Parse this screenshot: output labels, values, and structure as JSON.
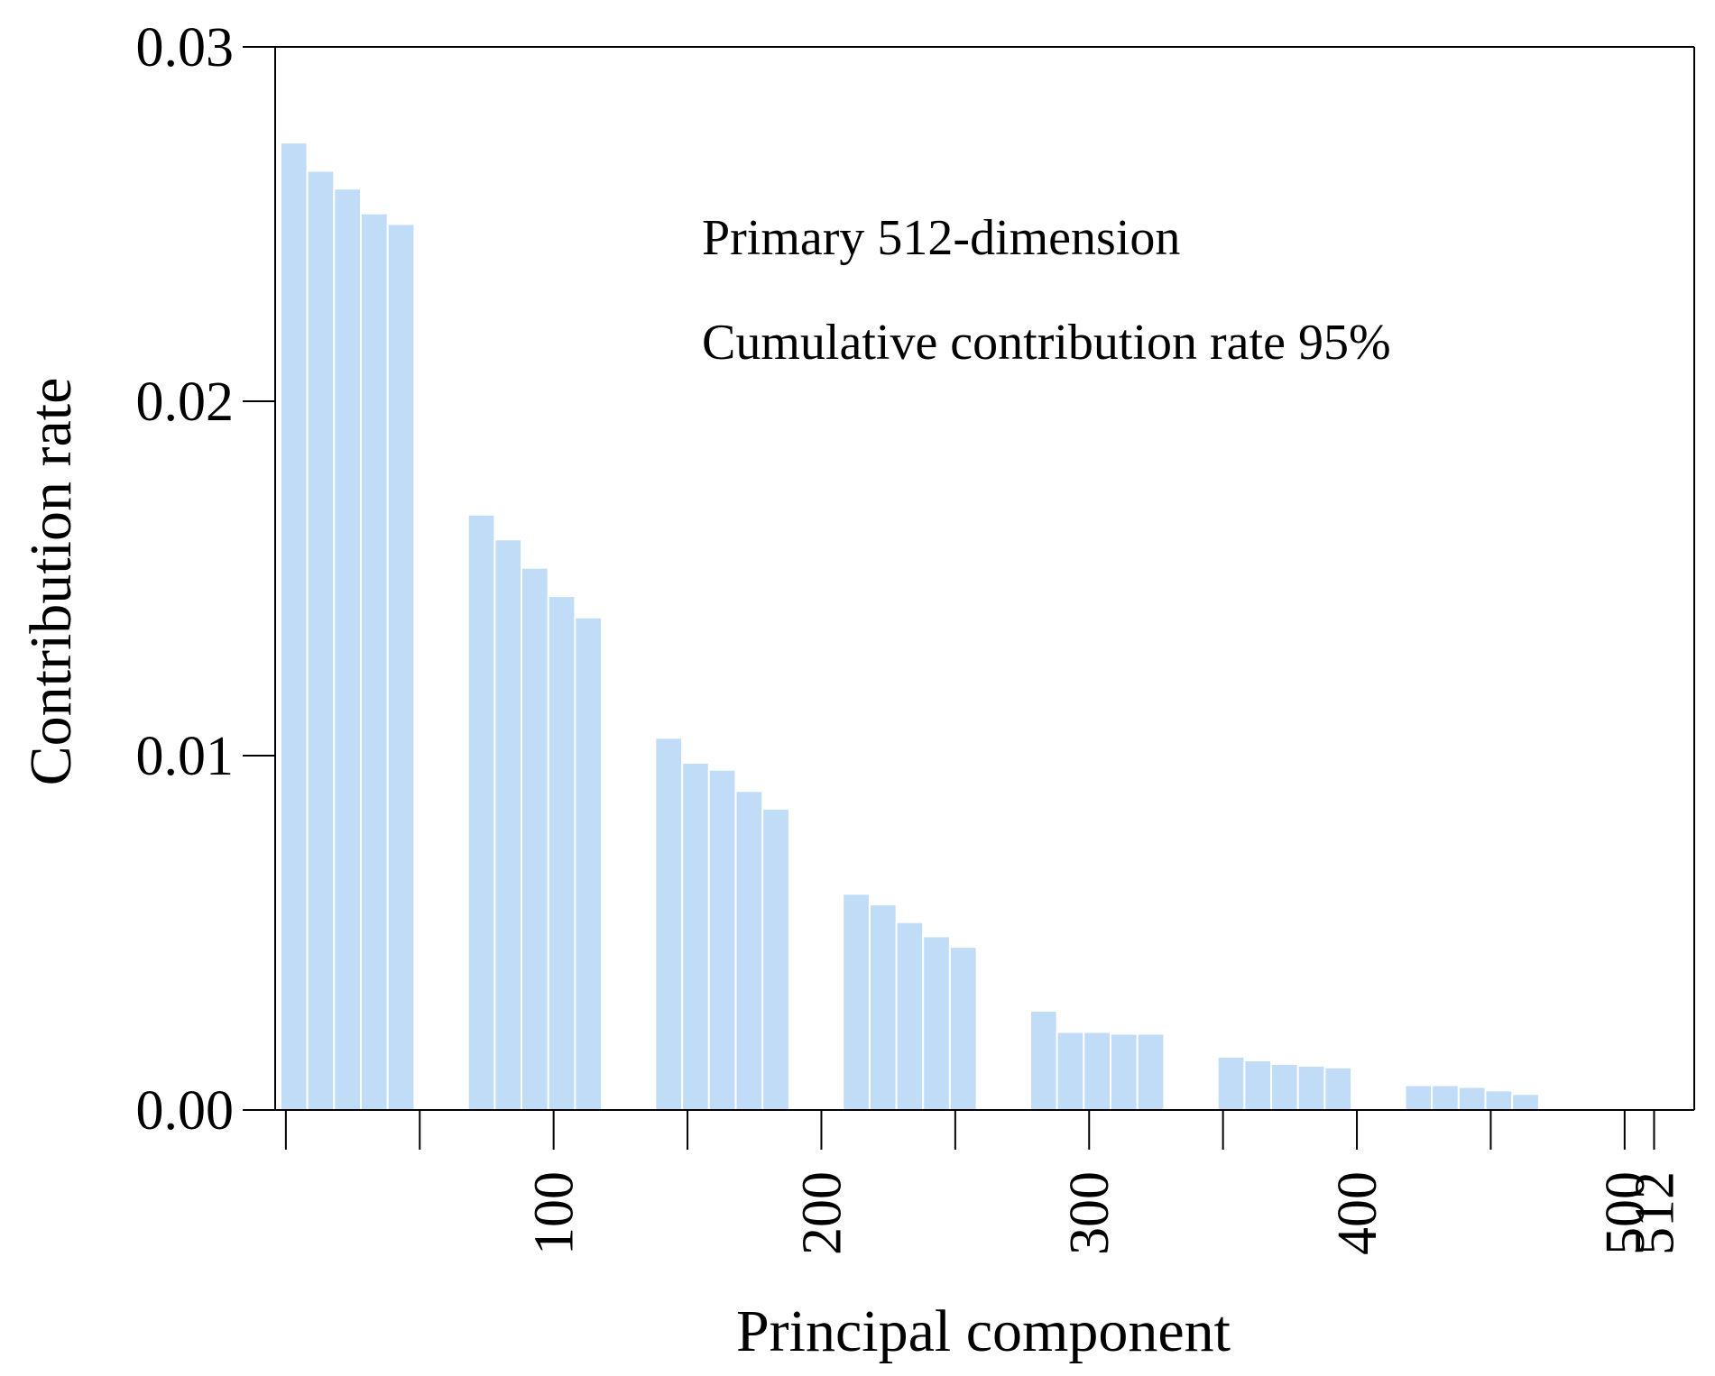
{
  "chart_data": {
    "type": "bar",
    "title": "",
    "xlabel": "Principal component",
    "ylabel": "Contribution rate",
    "ylim": [
      0,
      0.03
    ],
    "yticks": [
      0,
      0.01,
      0.02,
      0.03
    ],
    "ytick_labels": [
      "0.00",
      "0.01",
      "0.02",
      "0.03"
    ],
    "xlim": [
      -3,
      527
    ],
    "xticks": [
      1,
      51,
      101,
      151,
      201,
      251,
      301,
      351,
      401,
      451,
      501,
      512
    ],
    "xtick_labels": [
      "",
      "",
      "100",
      "",
      "200",
      "",
      "300",
      "",
      "400",
      "",
      "500",
      "512"
    ],
    "grid": false,
    "annotations": [
      "Primary 512-dimension",
      "Cumulative contribution rate 95%"
    ],
    "bar_width": 10,
    "colors": {
      "bar": "#c0dcf7",
      "bar_edge": "#ffffff",
      "axis": "#000000"
    },
    "bars": [
      {
        "x": 4,
        "value": 0.0273
      },
      {
        "x": 14,
        "value": 0.0265
      },
      {
        "x": 24,
        "value": 0.026
      },
      {
        "x": 34,
        "value": 0.0253
      },
      {
        "x": 44,
        "value": 0.025
      },
      {
        "x": 74,
        "value": 0.0168
      },
      {
        "x": 84,
        "value": 0.0161
      },
      {
        "x": 94,
        "value": 0.0153
      },
      {
        "x": 104,
        "value": 0.0145
      },
      {
        "x": 114,
        "value": 0.0139
      },
      {
        "x": 144,
        "value": 0.0105
      },
      {
        "x": 154,
        "value": 0.0098
      },
      {
        "x": 164,
        "value": 0.0096
      },
      {
        "x": 174,
        "value": 0.009
      },
      {
        "x": 184,
        "value": 0.0085
      },
      {
        "x": 214,
        "value": 0.0061
      },
      {
        "x": 224,
        "value": 0.0058
      },
      {
        "x": 234,
        "value": 0.0053
      },
      {
        "x": 244,
        "value": 0.0049
      },
      {
        "x": 254,
        "value": 0.0046
      },
      {
        "x": 284,
        "value": 0.0028
      },
      {
        "x": 294,
        "value": 0.0022
      },
      {
        "x": 304,
        "value": 0.0022
      },
      {
        "x": 314,
        "value": 0.00215
      },
      {
        "x": 324,
        "value": 0.00215
      },
      {
        "x": 354,
        "value": 0.0015
      },
      {
        "x": 364,
        "value": 0.0014
      },
      {
        "x": 374,
        "value": 0.0013
      },
      {
        "x": 384,
        "value": 0.00125
      },
      {
        "x": 394,
        "value": 0.0012
      },
      {
        "x": 424,
        "value": 0.0007
      },
      {
        "x": 434,
        "value": 0.0007
      },
      {
        "x": 444,
        "value": 0.00065
      },
      {
        "x": 454,
        "value": 0.00055
      },
      {
        "x": 464,
        "value": 0.00045
      }
    ]
  }
}
